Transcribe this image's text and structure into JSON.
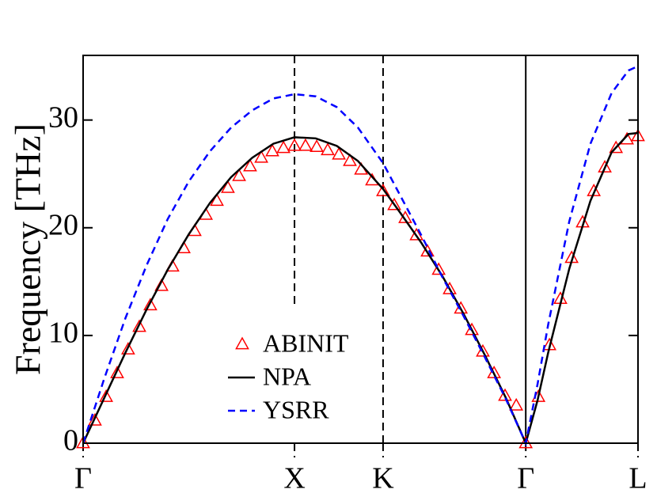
{
  "chart_data": {
    "type": "line",
    "y_label": "Frequency [THz]",
    "xlim": [
      0,
      2.625
    ],
    "ylim": [
      0,
      36
    ],
    "xticks": [
      {
        "value": 0,
        "label": "Γ"
      },
      {
        "value": 1,
        "label": "X"
      },
      {
        "value": 1.419,
        "label": "K"
      },
      {
        "value": 2.094,
        "label": "Γ"
      },
      {
        "value": 2.625,
        "label": "L"
      }
    ],
    "yticks": [
      0,
      10,
      20,
      30
    ],
    "vlines": [
      {
        "at": 1,
        "dashed": true,
        "from": 12.9
      },
      {
        "at": 1.419,
        "dashed": true,
        "from": 0
      },
      {
        "at": 2.094,
        "dashed": false,
        "from": 0
      }
    ],
    "legend": "lower-center",
    "series": [
      {
        "name": "ABINIT",
        "color": "#ff0000",
        "marker": "triangle",
        "x": [
          0,
          0.056,
          0.109,
          0.161,
          0.213,
          0.266,
          0.318,
          0.371,
          0.423,
          0.476,
          0.528,
          0.581,
          0.633,
          0.685,
          0.738,
          0.79,
          0.843,
          0.895,
          0.948,
          1.0,
          1.052,
          1.105,
          1.157,
          1.21,
          1.262,
          1.315,
          1.367,
          1.419,
          1.472,
          1.524,
          1.577,
          1.629,
          1.682,
          1.734,
          1.787,
          1.839,
          1.891,
          1.944,
          1.996,
          2.049,
          2.094,
          2.154,
          2.206,
          2.258,
          2.311,
          2.363,
          2.416,
          2.468,
          2.521,
          2.573,
          2.625
        ],
        "values": [
          0,
          2.1,
          4.3,
          6.5,
          8.7,
          10.8,
          12.8,
          14.6,
          16.4,
          18.1,
          19.7,
          21.2,
          22.5,
          23.7,
          24.8,
          25.7,
          26.5,
          27.1,
          27.4,
          27.6,
          27.6,
          27.5,
          27.2,
          26.8,
          26.2,
          25.4,
          24.4,
          23.4,
          22.1,
          20.9,
          19.3,
          17.8,
          16.1,
          14.3,
          12.5,
          10.5,
          8.5,
          6.5,
          4.4,
          3.5,
          0,
          4.3,
          9.1,
          13.4,
          17.2,
          20.5,
          23.4,
          25.6,
          27.4,
          28.2,
          28.5
        ]
      },
      {
        "name": "NPA",
        "color": "#000000",
        "dashed": false,
        "x": [
          0,
          0.1,
          0.2,
          0.3,
          0.4,
          0.5,
          0.6,
          0.7,
          0.8,
          0.9,
          1.0,
          1.1,
          1.2,
          1.3,
          1.419,
          1.5,
          1.6,
          1.7,
          1.8,
          1.9,
          2.0,
          2.094,
          2.15,
          2.2,
          2.3,
          2.4,
          2.5,
          2.58,
          2.625
        ],
        "values": [
          0,
          4.2,
          8.4,
          12.4,
          16.1,
          19.4,
          22.3,
          24.7,
          26.5,
          27.8,
          28.4,
          28.3,
          27.6,
          26.2,
          23.6,
          21.4,
          18.6,
          15.5,
          12.0,
          8.2,
          4.2,
          0,
          4.0,
          8.4,
          16.2,
          22.5,
          27.0,
          28.7,
          28.8
        ]
      },
      {
        "name": "YSRR",
        "color": "#0000ff",
        "dashed": true,
        "x": [
          0,
          0.1,
          0.2,
          0.3,
          0.4,
          0.5,
          0.6,
          0.7,
          0.8,
          0.9,
          1.0,
          1.1,
          1.2,
          1.3,
          1.419,
          1.5,
          1.6,
          1.7,
          1.8,
          1.9,
          2.0,
          2.094,
          2.15,
          2.2,
          2.3,
          2.4,
          2.5,
          2.58,
          2.625
        ],
        "values": [
          0,
          6.0,
          11.6,
          16.5,
          20.8,
          24.3,
          27.1,
          29.3,
          30.9,
          32.0,
          32.4,
          32.2,
          31.2,
          29.3,
          26.0,
          23.0,
          19.3,
          15.4,
          11.8,
          8.0,
          4.1,
          0,
          5.5,
          11.0,
          20.6,
          27.8,
          32.5,
          34.6,
          35.0
        ]
      }
    ]
  }
}
